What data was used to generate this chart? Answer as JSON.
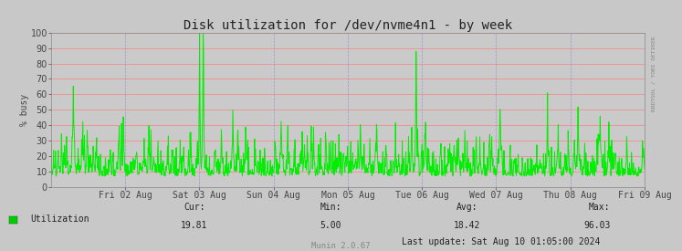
{
  "title": "Disk utilization for /dev/nvme4n1 - by week",
  "ylabel": "% busy",
  "background_color": "#C8C8C8",
  "plot_bg_color": "#CACACA",
  "grid_color_h": "#FF8080",
  "grid_color_v": "#9999CC",
  "line_color": "#00EE00",
  "line_width": 0.7,
  "ylim": [
    0,
    100
  ],
  "yticks": [
    0,
    10,
    20,
    30,
    40,
    50,
    60,
    70,
    80,
    90,
    100
  ],
  "xtick_labels": [
    "Fri 02 Aug",
    "Sat 03 Aug",
    "Sun 04 Aug",
    "Mon 05 Aug",
    "Tue 06 Aug",
    "Wed 07 Aug",
    "Thu 08 Aug",
    "Fri 09 Aug"
  ],
  "legend_label": "Utilization",
  "legend_color": "#00CC00",
  "cur_value": "19.81",
  "min_value": "5.00",
  "avg_value": "18.42",
  "max_value": "96.03",
  "last_update": "Last update: Sat Aug 10 01:05:00 2024",
  "munin_version": "Munin 2.0.67",
  "watermark": "RRDTOOL / TOBI OETIKER",
  "title_fontsize": 10,
  "axis_fontsize": 7,
  "footer_fontsize": 7,
  "num_points": 1500,
  "xlim_days": 8
}
